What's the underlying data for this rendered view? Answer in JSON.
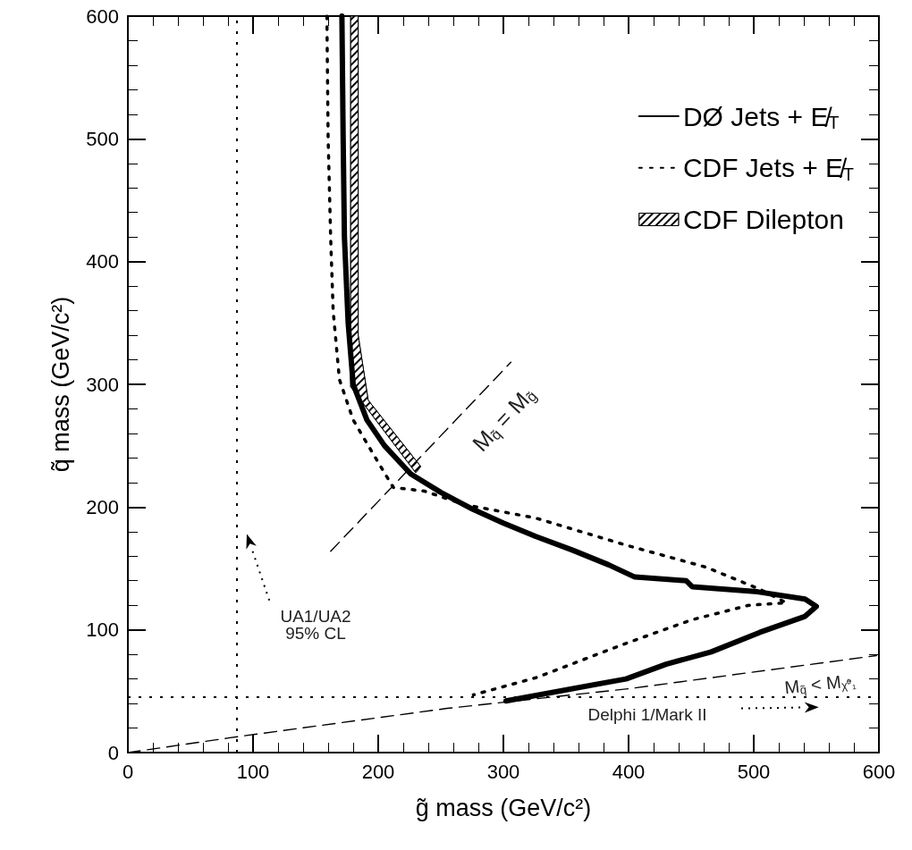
{
  "chart_data": {
    "type": "line",
    "xlabel": "g̃ mass (GeV/c²)",
    "ylabel": "q̃ mass (GeV/c²)",
    "xlim": [
      0,
      600
    ],
    "xticks": [
      0,
      100,
      200,
      300,
      400,
      500,
      600
    ],
    "ylim": [
      0,
      600
    ],
    "yticks": [
      0,
      100,
      200,
      300,
      400,
      500,
      600
    ],
    "grid": false,
    "legend": "top right",
    "marker": "none",
    "series": [
      {
        "name": "DØ Jets + E̸$_{T}$",
        "color": "#000000",
        "line_style": "solid",
        "x": [
          171,
          172,
          173,
          176,
          180,
          191,
          205,
          226,
          250,
          276,
          300,
          326,
          355,
          384,
          405,
          446,
          451,
          503,
          541,
          550,
          541,
          505,
          466,
          430,
          398,
          387,
          302
        ],
        "values": [
          600,
          500,
          420,
          350,
          300,
          271,
          250,
          227,
          212,
          198,
          187,
          176,
          165,
          153,
          143,
          140,
          135,
          131,
          125,
          119,
          111,
          98,
          82,
          72,
          60,
          58,
          42
        ]
      },
      {
        "name": "CDF Jets + E̸$_{T}$",
        "color": "#000000",
        "line_style": "dotted",
        "x": [
          159,
          160,
          162,
          164,
          169,
          180,
          195,
          212,
          237,
          269,
          326,
          398,
          462,
          505,
          526,
          496,
          450,
          398,
          326,
          276
        ],
        "values": [
          600,
          500,
          420,
          360,
          304,
          271,
          245,
          216,
          213,
          202,
          191,
          169,
          151,
          133,
          122,
          120,
          108,
          89,
          61,
          47
        ]
      },
      {
        "name": "CDF Dilepton",
        "type": "area",
        "color": "#000000",
        "x": [
          178,
          184,
          184,
          192,
          234,
          230,
          178
        ],
        "values": [
          600,
          600,
          340,
          287,
          233,
          228,
          298
        ]
      },
      {
        "color": "#000000",
        "line_style": "dashed",
        "x": [
          162,
          306
        ],
        "values": [
          164,
          318
        ]
      },
      {
        "color": "#000000",
        "line_style": "dashed",
        "x": [
          0,
          88,
          255,
          400,
          598
        ],
        "values": [
          0,
          13,
          36,
          52,
          79
        ]
      }
    ],
    "ref_lines": [
      {
        "axis": "x",
        "value": 87,
        "line_style": "dotted",
        "color": "#000000"
      },
      {
        "axis": "y",
        "value": 45,
        "line_style": "dotted",
        "color": "#000000"
      }
    ],
    "annotations": [
      "UA1/UA2\n95% CL",
      "Delphi 1/Mark II",
      "M$_{q̃}$ = M$_{g̃}$",
      "M$_{q̃}$ < M$_{χ̃⁰₁}$"
    ]
  }
}
